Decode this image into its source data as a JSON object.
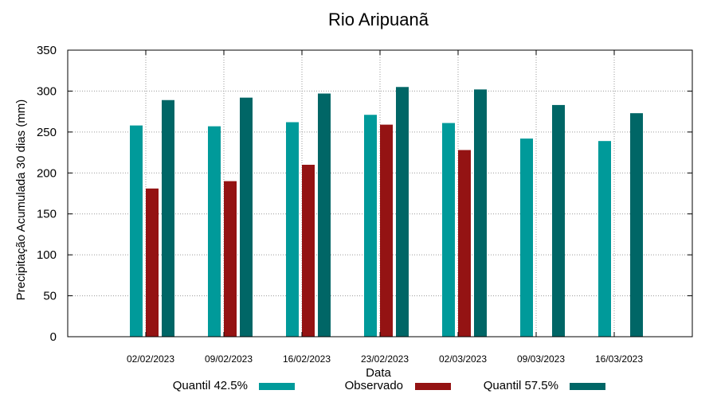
{
  "chart_data": {
    "type": "bar",
    "title": "Rio Aripuanã",
    "xlabel": "Data",
    "ylabel": "Precipitação Acumulada 30 dias (mm)",
    "ylim": [
      0,
      350
    ],
    "yticks": [
      0,
      50,
      100,
      150,
      200,
      250,
      300,
      350
    ],
    "grid": true,
    "legend_position": "bottom",
    "categories": [
      "02/02/2023",
      "09/02/2023",
      "16/02/2023",
      "23/02/2023",
      "02/03/2023",
      "09/03/2023",
      "16/03/2023"
    ],
    "series": [
      {
        "name": "Quantil 42.5%",
        "color": "#009a9a",
        "values": [
          258,
          257,
          262,
          271,
          261,
          242,
          239
        ]
      },
      {
        "name": "Observado",
        "color": "#941313",
        "values": [
          181,
          190,
          210,
          259,
          228,
          null,
          null
        ]
      },
      {
        "name": "Quantil 57.5%",
        "color": "#006666",
        "values": [
          289,
          292,
          297,
          305,
          302,
          283,
          273
        ]
      }
    ]
  }
}
